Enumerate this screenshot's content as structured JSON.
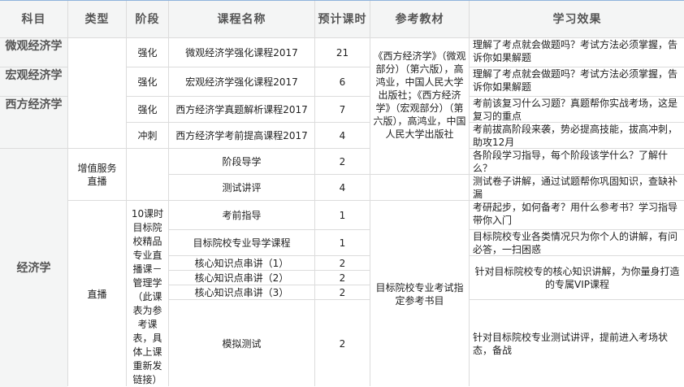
{
  "headers": [
    "科目",
    "类型",
    "阶段",
    "课程名称",
    "预计课时",
    "参考教材",
    "学习效果"
  ],
  "subjects": [
    "微观经济学",
    "宏观经济学",
    "西方经济学",
    "经济学"
  ],
  "types": [
    "增值服务直播",
    "直播"
  ],
  "stages": [
    "强化",
    "强化",
    "强化",
    "冲刺",
    "10课时目标院校精品专业直播课－管理学（此课表为参考课表，具体上课重新发链接）"
  ],
  "courses": [
    {
      "name": "微观经济学强化课程2017",
      "hours": "21"
    },
    {
      "name": "宏观经济学强化课程2017",
      "hours": "6"
    },
    {
      "name": "西方经济学真题解析课程2017",
      "hours": "7"
    },
    {
      "name": "西方经济学考前提高课程2017",
      "hours": "4"
    },
    {
      "name": "阶段导学",
      "hours": "2"
    },
    {
      "name": "测试讲评",
      "hours": "4"
    },
    {
      "name": "考前指导",
      "hours": "1"
    },
    {
      "name": "目标院校专业导学课程",
      "hours": "1"
    },
    {
      "name": "核心知识点串讲（1）",
      "hours": "2"
    },
    {
      "name": "核心知识点串讲（2）",
      "hours": "2"
    },
    {
      "name": "核心知识点串讲（3）",
      "hours": "2"
    },
    {
      "name": "模拟测试",
      "hours": "2"
    }
  ],
  "references": [
    "《西方经济学》（微观部分）（第六版），高鸿业，中国人民大学出版社；《西方经济学》（宏观部分）（第六版），高鸿业，中国人民大学出版社",
    "目标院校专业考试指定参考书目"
  ],
  "effects": [
    "理解了考点就会做题吗？考试方法必须掌握，告诉你如果解题",
    "理解了考点就会做题吗？考试方法必须掌握，告诉你如果解题",
    "考前该复习什么习题？真题帮你实战考场，这是复习的重点",
    "考前拔高阶段来袭，势必提高技能，拔高冲刺，助攻12月",
    "各阶段学习指导，每个阶段该学什么？了解什么？",
    "测试卷子讲解，通过试题帮你巩固知识，查缺补漏",
    "考研起步，如何备考？用什么参考书？学习指导带你入门",
    "目标院校专业各类情况只为你个人的讲解，有问必答，一扫困惑",
    "针对目标院校专的核心知识讲解，为你量身打造的专属VIP课程",
    "针对目标院校专业测试讲评，提前进入考场状态，备战"
  ]
}
